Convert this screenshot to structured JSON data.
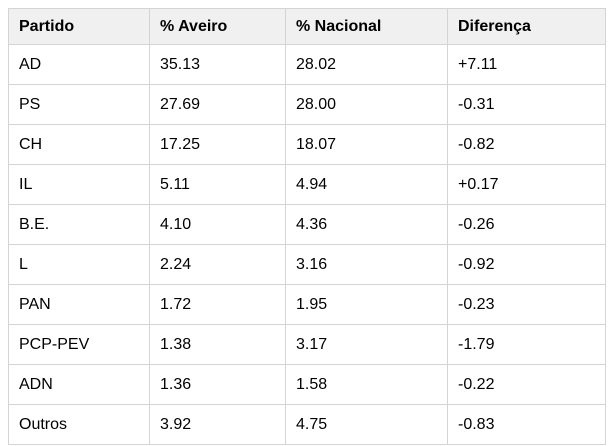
{
  "chart_data": {
    "type": "table",
    "title": "",
    "columns": [
      "Partido",
      "% Aveiro",
      "% Nacional",
      "Diferença"
    ],
    "rows": [
      [
        "AD",
        "35.13",
        "28.02",
        "+7.11"
      ],
      [
        "PS",
        "27.69",
        "28.00",
        "-0.31"
      ],
      [
        "CH",
        "17.25",
        "18.07",
        "-0.82"
      ],
      [
        "IL",
        "5.11",
        "4.94",
        "+0.17"
      ],
      [
        "B.E.",
        "4.10",
        "4.36",
        "-0.26"
      ],
      [
        "L",
        "2.24",
        "3.16",
        "-0.92"
      ],
      [
        "PAN",
        "1.72",
        "1.95",
        "-0.23"
      ],
      [
        "PCP-PEV",
        "1.38",
        "3.17",
        "-1.79"
      ],
      [
        "ADN",
        "1.36",
        "1.58",
        "-0.22"
      ],
      [
        "Outros",
        "3.92",
        "4.75",
        "-0.83"
      ]
    ]
  },
  "colors": {
    "header_bg": "#f0f0f0",
    "border": "#d4d4d4",
    "text": "#000000",
    "page_bg": "#ffffff"
  }
}
